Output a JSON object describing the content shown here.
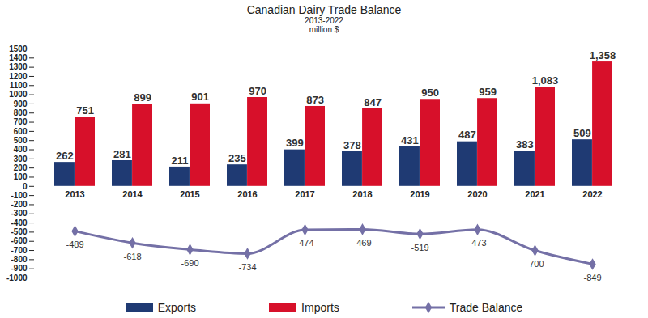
{
  "chart_data": {
    "type": "bar",
    "title": "Canadian Dairy Trade Balance",
    "subtitle": [
      "2013-2022",
      "million $"
    ],
    "categories": [
      "2013",
      "2014",
      "2015",
      "2016",
      "2017",
      "2018",
      "2019",
      "2020",
      "2021",
      "2022"
    ],
    "series": [
      {
        "name": "Exports",
        "type": "bar",
        "color": "#1f3a73",
        "values": [
          262,
          281,
          211,
          235,
          399,
          378,
          431,
          487,
          383,
          509
        ]
      },
      {
        "name": "Imports",
        "type": "bar",
        "color": "#d7102a",
        "values": [
          751,
          899,
          901,
          970,
          873,
          847,
          950,
          959,
          1083,
          1358
        ],
        "value_labels": [
          "751",
          "899",
          "901",
          "970",
          "873",
          "847",
          "950",
          "959",
          "1,083",
          "1,358"
        ]
      },
      {
        "name": "Trade Balance",
        "type": "line",
        "color": "#7470a6",
        "marker": "diamond",
        "values": [
          -489,
          -618,
          -690,
          -734,
          -474,
          -469,
          -519,
          -473,
          -700,
          -849
        ]
      }
    ],
    "ylim": [
      -1000,
      1500
    ],
    "yticks": [
      -1000,
      -900,
      -800,
      -700,
      -600,
      -500,
      -400,
      -300,
      -200,
      -100,
      0,
      100,
      200,
      300,
      400,
      500,
      600,
      700,
      800,
      900,
      1000,
      1100,
      1200,
      1300,
      1400,
      1500
    ],
    "grid": false,
    "legend": "bottom",
    "data_labels": true
  }
}
